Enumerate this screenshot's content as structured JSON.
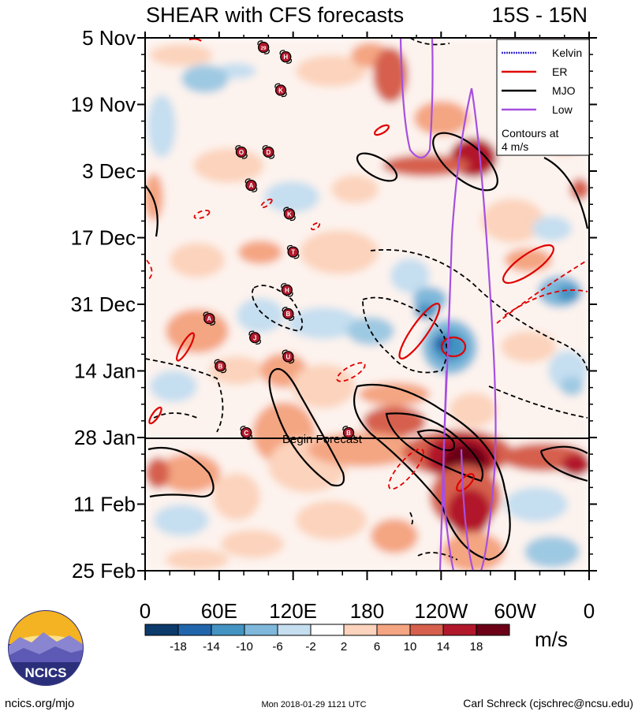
{
  "chart_data": {
    "type": "heatmap",
    "title": "SHEAR with CFS forecasts",
    "subtitle": "15S - 15N",
    "y_axis": {
      "labels": [
        "5 Nov",
        "19 Nov",
        "3 Dec",
        "17 Dec",
        "31 Dec",
        "14 Jan",
        "28 Jan",
        "11 Feb",
        "25 Feb"
      ],
      "direction": "time increasing downward"
    },
    "x_axis": {
      "labels": [
        "0",
        "60E",
        "120E",
        "180",
        "120W",
        "60W",
        "0"
      ],
      "range_degrees": [
        0,
        360
      ]
    },
    "begin_forecast": {
      "label": "Begin Forecast",
      "date": "28 Jan"
    },
    "legend": [
      {
        "name": "Kelvin",
        "color": "#3a2fd0"
      },
      {
        "name": "ER",
        "color": "#e00000"
      },
      {
        "name": "MJO",
        "color": "#000000"
      },
      {
        "name": "Low",
        "color": "#a64fe0"
      }
    ],
    "legend_note": "Contours at 4 m/s",
    "colorbar": {
      "ticks": [
        "-18",
        "-14",
        "-10",
        "-6",
        "-2",
        "2",
        "6",
        "10",
        "14",
        "18"
      ],
      "units": "m/s",
      "colors": [
        "#0c3a6b",
        "#2166ac",
        "#4393c3",
        "#7fb8da",
        "#c5def0",
        "#ffffff",
        "#fcd3bc",
        "#f4a582",
        "#d6604d",
        "#b2182b",
        "#6b0016"
      ]
    },
    "storm_markers": [
      {
        "label": "29",
        "lon": 96,
        "date": "7 Nov"
      },
      {
        "label": "H",
        "lon": 114,
        "date": "9 Nov"
      },
      {
        "label": "K",
        "lon": 110,
        "date": "16 Nov"
      },
      {
        "label": "O",
        "lon": 78,
        "date": "29 Nov"
      },
      {
        "label": "D",
        "lon": 100,
        "date": "29 Nov"
      },
      {
        "label": "A",
        "lon": 86,
        "date": "6 Dec"
      },
      {
        "label": "K",
        "lon": 117,
        "date": "12 Dec"
      },
      {
        "label": "T",
        "lon": 120,
        "date": "20 Dec"
      },
      {
        "label": "H",
        "lon": 115,
        "date": "28 Dec"
      },
      {
        "label": "A",
        "lon": 52,
        "date": "3 Jan"
      },
      {
        "label": "B",
        "lon": 116,
        "date": "2 Jan"
      },
      {
        "label": "J",
        "lon": 89,
        "date": "7 Jan"
      },
      {
        "label": "U",
        "lon": 116,
        "date": "11 Jan"
      },
      {
        "label": "B",
        "lon": 61,
        "date": "13 Jan"
      },
      {
        "label": "C",
        "lon": 82,
        "date": "27 Jan"
      },
      {
        "label": "B",
        "lon": 165,
        "date": "27 Jan"
      }
    ]
  },
  "logo": {
    "text": "NCICS"
  },
  "footer": {
    "left": "ncics.org/mjo",
    "center": "Mon 2018-01-29 1121 UTC",
    "right": "Carl Schreck (cjschrec@ncsu.edu)"
  }
}
